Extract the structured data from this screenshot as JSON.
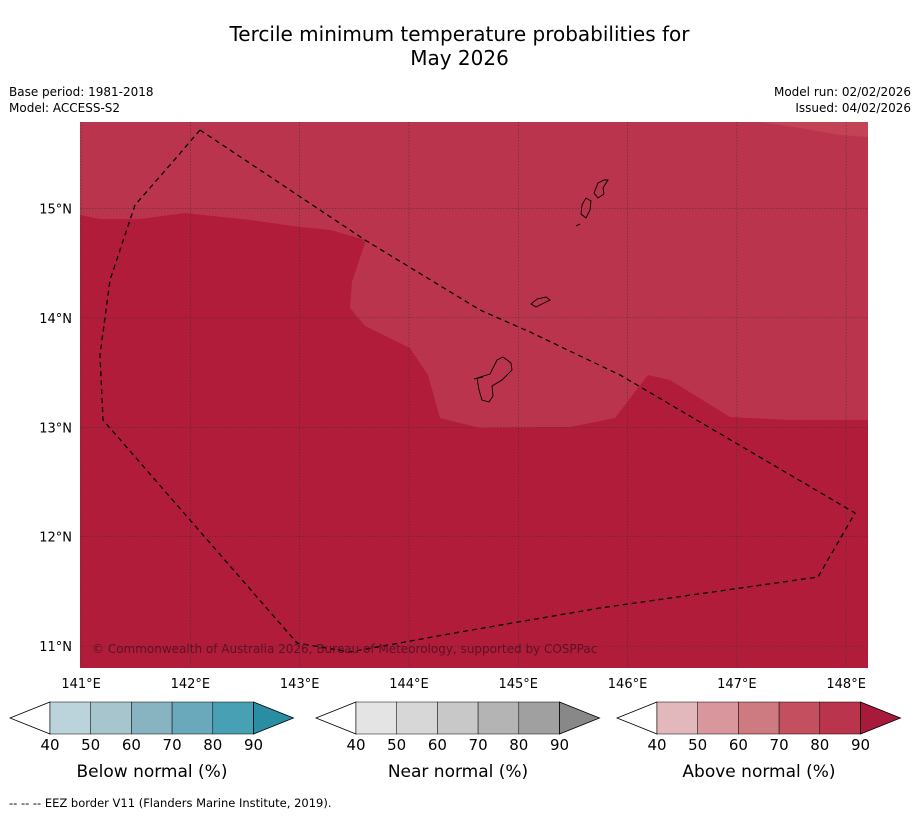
{
  "title": {
    "line1": "Tercile minimum temperature probabilities for",
    "line2": "May 2026"
  },
  "meta": {
    "base_period": "Base period: 1981-2018",
    "model": "Model: ACCESS-S2",
    "model_run": "Model run: 02/02/2026",
    "issued": "Issued: 04/02/2026"
  },
  "map": {
    "lon_range": [
      140.99,
      148.2
    ],
    "lat_range": [
      10.8,
      15.79
    ],
    "lon_ticks": [
      "141°E",
      "142°E",
      "143°E",
      "144°E",
      "145°E",
      "146°E",
      "147°E",
      "148°E"
    ],
    "lat_ticks": [
      "15°N",
      "14°N",
      "13°N",
      "12°N",
      "11°N"
    ],
    "copyright": "© Commonwealth of Australia 2026, Bureau of Meteorology, supported by COSPPac",
    "colors": {
      "above_90": "#b21c3b",
      "above_80": "#bb344d",
      "above_70": "#c4505f",
      "above_60": "#cd7a81",
      "above_50": "#d9979d",
      "above_40": "#e2b8bd"
    }
  },
  "colorbars": [
    {
      "name": "below",
      "label": "Below normal (%)",
      "ticks": [
        "40",
        "50",
        "60",
        "70",
        "80",
        "90"
      ],
      "colors": [
        "#ffffff",
        "#bbd3da",
        "#a6c5cc",
        "#88b4c1",
        "#69a9bb",
        "#48a0b4",
        "#2a8ea2"
      ]
    },
    {
      "name": "near",
      "label": "Near normal (%)",
      "ticks": [
        "40",
        "50",
        "60",
        "70",
        "80",
        "90"
      ],
      "colors": [
        "#ffffff",
        "#e4e4e4",
        "#d7d7d7",
        "#c8c8c8",
        "#b4b4b4",
        "#a0a0a0",
        "#888888"
      ]
    },
    {
      "name": "above",
      "label": "Above normal (%)",
      "ticks": [
        "40",
        "50",
        "60",
        "70",
        "80",
        "90"
      ],
      "colors": [
        "#ffffff",
        "#e2b8bd",
        "#d9979d",
        "#cd7a81",
        "#c4505f",
        "#bb344d",
        "#a81a3c"
      ]
    }
  ],
  "footnote": "--  --  -- EEZ border V11 (Flanders Marine Institute, 2019)."
}
